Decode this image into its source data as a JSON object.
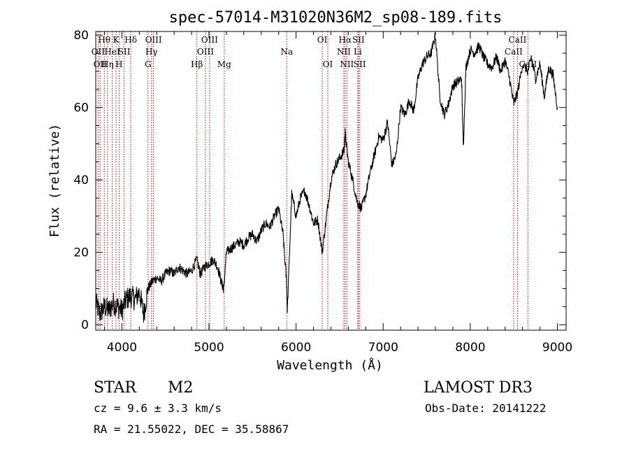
{
  "chart_data": {
    "type": "line",
    "title": "spec-57014-M31020N36M2_sp08-189.fits",
    "xlabel": "Wavelength (Å)",
    "ylabel": "Flux (relative)",
    "xlim": [
      3700,
      9100
    ],
    "ylim": [
      -1.5,
      81
    ],
    "xticks": [
      4000,
      5000,
      6000,
      7000,
      8000,
      9000
    ],
    "yticks": [
      0,
      20,
      40,
      60,
      80
    ],
    "xtick_labels": [
      "4000",
      "5000",
      "6000",
      "7000",
      "8000",
      "9000"
    ],
    "ytick_labels": [
      "0",
      "20",
      "40",
      "60",
      "80"
    ],
    "series": [
      {
        "name": "flux",
        "x": [
          3700,
          3750,
          3800,
          3850,
          3900,
          3950,
          4000,
          4050,
          4100,
          4150,
          4200,
          4250,
          4300,
          4350,
          4400,
          4450,
          4500,
          4550,
          4600,
          4650,
          4700,
          4750,
          4800,
          4861,
          4900,
          4950,
          5000,
          5050,
          5100,
          5150,
          5170,
          5200,
          5250,
          5300,
          5350,
          5400,
          5450,
          5500,
          5550,
          5600,
          5650,
          5700,
          5750,
          5800,
          5850,
          5890,
          5900,
          5950,
          6000,
          6050,
          6100,
          6150,
          6200,
          6250,
          6300,
          6350,
          6400,
          6450,
          6500,
          6550,
          6563,
          6600,
          6650,
          6700,
          6750,
          6800,
          6850,
          6900,
          6950,
          7000,
          7050,
          7100,
          7150,
          7200,
          7250,
          7300,
          7350,
          7400,
          7450,
          7500,
          7550,
          7600,
          7650,
          7700,
          7750,
          7800,
          7850,
          7900,
          7920,
          7950,
          8000,
          8050,
          8100,
          8150,
          8200,
          8250,
          8300,
          8350,
          8400,
          8450,
          8498,
          8542,
          8600,
          8662,
          8700,
          8750,
          8800,
          8850,
          8900,
          8950,
          9000
        ],
        "y": [
          6,
          3,
          5,
          4,
          6,
          5,
          4,
          7,
          8,
          7,
          9,
          3,
          10,
          12,
          13,
          12,
          14,
          15,
          14,
          16,
          15,
          14,
          15,
          18,
          14,
          16,
          17,
          18,
          16,
          11,
          10,
          20,
          21,
          22,
          23,
          22,
          24,
          25,
          23,
          26,
          28,
          27,
          30,
          32,
          25,
          12,
          4,
          36,
          30,
          35,
          37,
          33,
          28,
          29,
          20,
          30,
          40,
          44,
          46,
          48,
          53,
          45,
          40,
          34,
          32,
          36,
          42,
          47,
          52,
          51,
          56,
          44,
          47,
          60,
          58,
          62,
          59,
          68,
          72,
          74,
          75,
          80,
          63,
          58,
          61,
          66,
          67,
          68,
          49,
          71,
          76,
          75,
          77,
          74,
          72,
          71,
          74,
          70,
          73,
          68,
          61,
          64,
          72,
          70,
          74,
          68,
          72,
          63,
          71,
          69,
          60
        ]
      }
    ],
    "lines": [
      {
        "wavelength": 3727,
        "label": "OII",
        "row": 2
      },
      {
        "wavelength": 3750,
        "label": "OII",
        "row": 3
      },
      {
        "wavelength": 3798,
        "label": "Hθ",
        "row": 1
      },
      {
        "wavelength": 3835,
        "label": "Hη",
        "row": 3
      },
      {
        "wavelength": 3889,
        "label": "HeI",
        "row": 2
      },
      {
        "wavelength": 3933,
        "label": "K",
        "row": 1
      },
      {
        "wavelength": 3968,
        "label": "H",
        "row": 3
      },
      {
        "wavelength": 4026,
        "label": "SII",
        "row": 2
      },
      {
        "wavelength": 4102,
        "label": "Hδ",
        "row": 1
      },
      {
        "wavelength": 4300,
        "label": "G",
        "row": 3
      },
      {
        "wavelength": 4340,
        "label": "Hγ",
        "row": 2
      },
      {
        "wavelength": 4363,
        "label": "OIII",
        "row": 1
      },
      {
        "wavelength": 4861,
        "label": "Hβ",
        "row": 3
      },
      {
        "wavelength": 4959,
        "label": "OIII",
        "row": 2
      },
      {
        "wavelength": 5007,
        "label": "OIII",
        "row": 1
      },
      {
        "wavelength": 5175,
        "label": "Mg",
        "row": 3
      },
      {
        "wavelength": 5893,
        "label": "Na",
        "row": 2
      },
      {
        "wavelength": 6300,
        "label": "OI",
        "row": 1
      },
      {
        "wavelength": 6364,
        "label": "OI",
        "row": 3
      },
      {
        "wavelength": 6548,
        "label": "NII",
        "row": 2
      },
      {
        "wavelength": 6563,
        "label": "Hα",
        "row": 1
      },
      {
        "wavelength": 6583,
        "label": "NII",
        "row": 3
      },
      {
        "wavelength": 6708,
        "label": "Li",
        "row": 2
      },
      {
        "wavelength": 6716,
        "label": "SII",
        "row": 1
      },
      {
        "wavelength": 6731,
        "label": "SII",
        "row": 3
      },
      {
        "wavelength": 8498,
        "label": "CaII",
        "row": 2
      },
      {
        "wavelength": 8542,
        "label": "CaII",
        "row": 1
      },
      {
        "wavelength": 8662,
        "label": "CaII",
        "row": 3
      }
    ]
  },
  "info": {
    "class_label": "STAR",
    "subclass": "M2",
    "survey": "LAMOST DR3",
    "redshift": "cz = 9.6 ± 3.3 km/s",
    "obs_date": "Obs-Date: 20141222",
    "coords": "RA =  21.55022, DEC =  35.58867"
  },
  "colors": {
    "spectrum": "#000000",
    "line_marker": "#cc0000",
    "axis": "#000000"
  }
}
